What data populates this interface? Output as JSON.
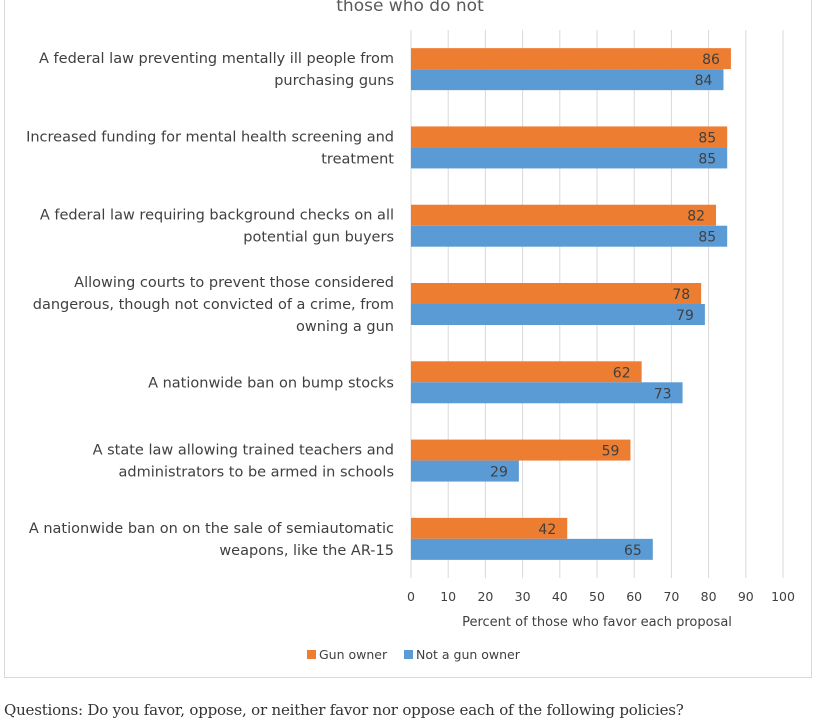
{
  "chart_data": {
    "type": "bar",
    "orientation": "horizontal",
    "title": "those who do not",
    "categories": [
      [
        "A federal law preventing mentally ill people from",
        "purchasing guns"
      ],
      [
        "Increased funding for mental health screening and",
        "treatment"
      ],
      [
        "A federal law requiring background checks on all",
        "potential gun buyers"
      ],
      [
        "Allowing courts to prevent those considered",
        "dangerous, though not convicted of a crime, from",
        "owning a gun"
      ],
      [
        "A nationwide ban on bump stocks"
      ],
      [
        "A state law allowing trained teachers and",
        "administrators to be armed in schools"
      ],
      [
        "A nationwide ban on on the sale of semiautomatic",
        "weapons, like the AR-15"
      ]
    ],
    "series": [
      {
        "name": "Gun owner",
        "color": "#ed7d31",
        "values": [
          86,
          85,
          82,
          78,
          62,
          59,
          42
        ]
      },
      {
        "name": "Not a gun owner",
        "color": "#5b9bd5",
        "values": [
          84,
          85,
          85,
          79,
          73,
          29,
          65
        ]
      }
    ],
    "xlabel": "Percent of those who favor each proposal",
    "xlim": [
      0,
      100
    ],
    "xticks": [
      0,
      10,
      20,
      30,
      40,
      50,
      60,
      70,
      80,
      90,
      100
    ],
    "grid": true,
    "legend": "bottom",
    "data_labels": true
  },
  "footer": {
    "question": "Questions: Do you favor, oppose, or neither favor nor oppose each of the following policies?"
  }
}
